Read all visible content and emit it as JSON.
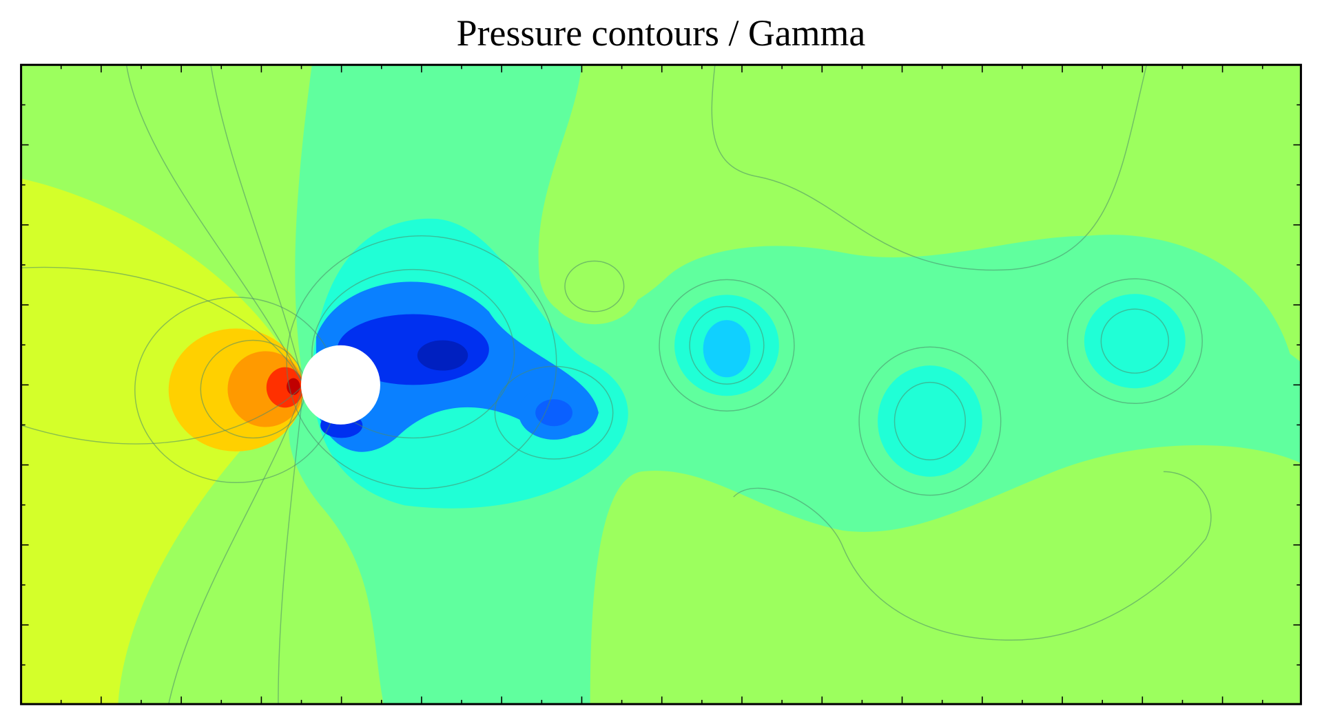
{
  "chart_data": {
    "type": "contour",
    "title": "Pressure contours / Gamma"
  }
}
